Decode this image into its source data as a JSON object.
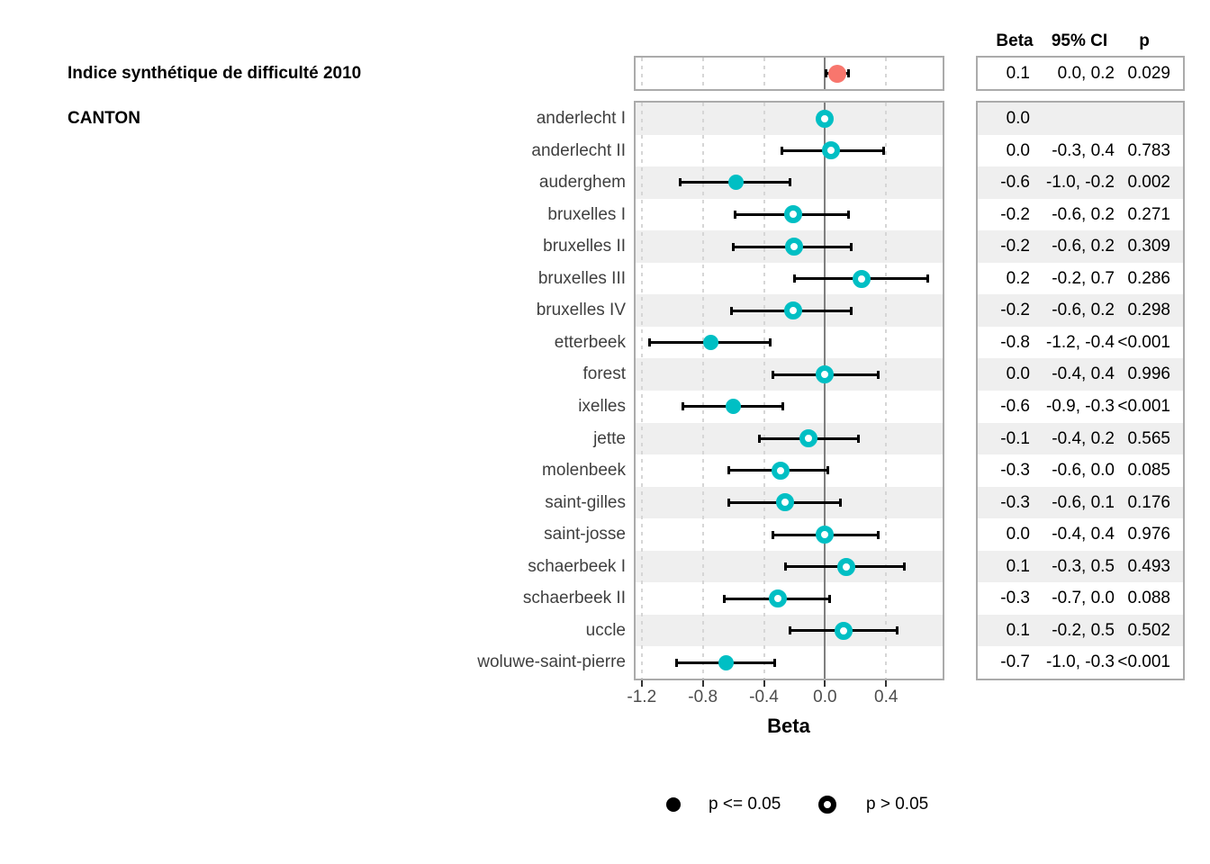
{
  "chart_data": {
    "type": "scatter",
    "variant": "forest-plot",
    "xlabel": "Beta",
    "x_domain": [
      -1.24,
      0.77
    ],
    "x_ticks": [
      -1.2,
      -0.8,
      -0.4,
      0.0,
      0.4
    ],
    "x_tick_labels": [
      "-1.2",
      "-0.8",
      "-0.4",
      "0.0",
      "0.4"
    ],
    "grid": "dashed-major-verticals",
    "zero_reference_line": 0.0,
    "header": {
      "beta": "Beta",
      "ci": "95% CI",
      "p": "p"
    },
    "variable": {
      "label": "Indice synthétique de difficulté 2010",
      "beta": "0.1",
      "ci": "0.0, 0.2",
      "p": "0.029",
      "est": 0.08,
      "lo": 0.0,
      "hi": 0.16,
      "significant": true
    },
    "group_label": "CANTON",
    "cantons": [
      {
        "label": "anderlecht I",
        "beta": "0.0",
        "ci": "",
        "p": "",
        "est": 0.0,
        "lo": null,
        "hi": null,
        "significant": false
      },
      {
        "label": "anderlecht II",
        "beta": "0.0",
        "ci": "-0.3, 0.4",
        "p": "0.783",
        "est": 0.04,
        "lo": -0.29,
        "hi": 0.39,
        "significant": false
      },
      {
        "label": "auderghem",
        "beta": "-0.6",
        "ci": "-1.0, -0.2",
        "p": "0.002",
        "est": -0.58,
        "lo": -0.96,
        "hi": -0.22,
        "significant": true
      },
      {
        "label": "bruxelles I",
        "beta": "-0.2",
        "ci": "-0.6, 0.2",
        "p": "0.271",
        "est": -0.21,
        "lo": -0.6,
        "hi": 0.16,
        "significant": false
      },
      {
        "label": "bruxelles II",
        "beta": "-0.2",
        "ci": "-0.6, 0.2",
        "p": "0.309",
        "est": -0.2,
        "lo": -0.61,
        "hi": 0.18,
        "significant": false
      },
      {
        "label": "bruxelles III",
        "beta": "0.2",
        "ci": "-0.2, 0.7",
        "p": "0.286",
        "est": 0.24,
        "lo": -0.21,
        "hi": 0.68,
        "significant": false
      },
      {
        "label": "bruxelles IV",
        "beta": "-0.2",
        "ci": "-0.6, 0.2",
        "p": "0.298",
        "est": -0.21,
        "lo": -0.62,
        "hi": 0.18,
        "significant": false
      },
      {
        "label": "etterbeek",
        "beta": "-0.8",
        "ci": "-1.2, -0.4",
        "p": "<0.001",
        "est": -0.75,
        "lo": -1.16,
        "hi": -0.35,
        "significant": true
      },
      {
        "label": "forest",
        "beta": "0.0",
        "ci": "-0.4, 0.4",
        "p": "0.996",
        "est": 0.0,
        "lo": -0.35,
        "hi": 0.36,
        "significant": false
      },
      {
        "label": "ixelles",
        "beta": "-0.6",
        "ci": "-0.9, -0.3",
        "p": "<0.001",
        "est": -0.6,
        "lo": -0.94,
        "hi": -0.27,
        "significant": true
      },
      {
        "label": "jette",
        "beta": "-0.1",
        "ci": "-0.4, 0.2",
        "p": "0.565",
        "est": -0.11,
        "lo": -0.44,
        "hi": 0.23,
        "significant": false
      },
      {
        "label": "molenbeek",
        "beta": "-0.3",
        "ci": "-0.6, 0.0",
        "p": "0.085",
        "est": -0.29,
        "lo": -0.64,
        "hi": 0.03,
        "significant": false
      },
      {
        "label": "saint-gilles",
        "beta": "-0.3",
        "ci": "-0.6, 0.1",
        "p": "0.176",
        "est": -0.26,
        "lo": -0.64,
        "hi": 0.11,
        "significant": false
      },
      {
        "label": "saint-josse",
        "beta": "0.0",
        "ci": "-0.4, 0.4",
        "p": "0.976",
        "est": 0.0,
        "lo": -0.35,
        "hi": 0.36,
        "significant": false
      },
      {
        "label": "schaerbeek I",
        "beta": "0.1",
        "ci": "-0.3, 0.5",
        "p": "0.493",
        "est": 0.14,
        "lo": -0.27,
        "hi": 0.53,
        "significant": false
      },
      {
        "label": "schaerbeek II",
        "beta": "-0.3",
        "ci": "-0.7, 0.0",
        "p": "0.088",
        "est": -0.31,
        "lo": -0.67,
        "hi": 0.04,
        "significant": false
      },
      {
        "label": "uccle",
        "beta": "0.1",
        "ci": "-0.2, 0.5",
        "p": "0.502",
        "est": 0.12,
        "lo": -0.24,
        "hi": 0.48,
        "significant": false
      },
      {
        "label": "woluwe-saint-pierre",
        "beta": "-0.7",
        "ci": "-1.0, -0.3",
        "p": "<0.001",
        "est": -0.65,
        "lo": -0.98,
        "hi": -0.32,
        "significant": true
      }
    ],
    "legend": {
      "significant": "p <= 0.05",
      "not_significant": "p > 0.05"
    },
    "legend_position": "bottom",
    "colors": {
      "variable_marker": "#F8766D",
      "canton_marker": "#00BFC4",
      "ci_line": "#000000",
      "stripe": "#EFEFEF",
      "panel_border": "#ABABAB",
      "zero_line": "#7F7F7F",
      "gridline": "#D6D6D6"
    }
  }
}
